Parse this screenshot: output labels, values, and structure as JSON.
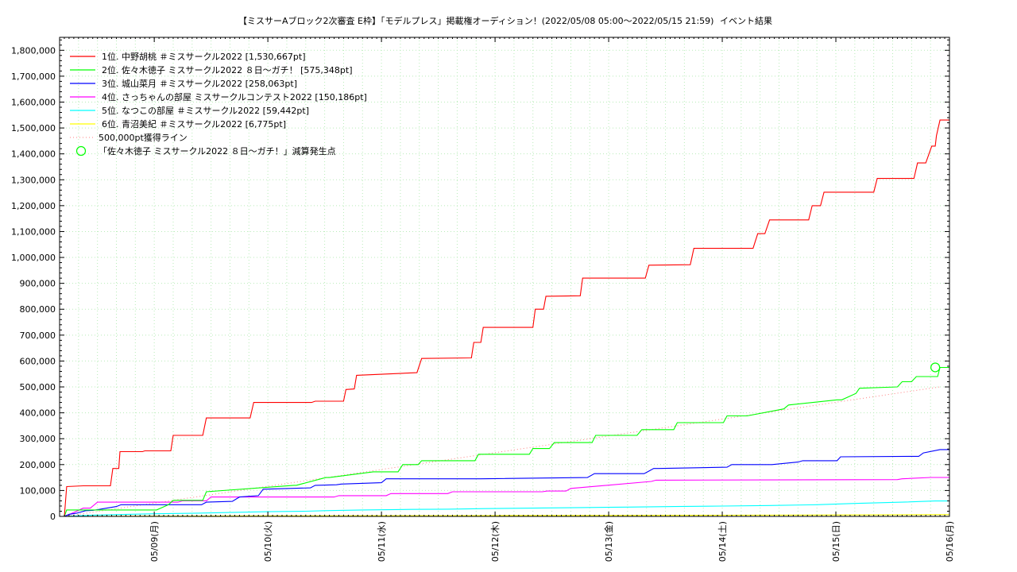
{
  "chart_data": {
    "type": "line",
    "title": "【ミスサーAブロック2次審査 E枠】「モデルプレス」掲載権オーディション！(2022/05/08 05:00～2022/05/15 21:59)",
    "subtitle": "イベント結果",
    "xlabel": "",
    "ylabel": "",
    "x_range": [
      "2022-05-08 04:00",
      "2022-05-16 00:00"
    ],
    "ylim": [
      0,
      1850000
    ],
    "y_ticks": [
      0,
      100000,
      200000,
      300000,
      400000,
      500000,
      600000,
      700000,
      800000,
      900000,
      1000000,
      1100000,
      1200000,
      1300000,
      1400000,
      1500000,
      1600000,
      1700000,
      1800000
    ],
    "y_tick_labels": [
      "0",
      "100,000",
      "200,000",
      "300,000",
      "400,000",
      "500,000",
      "600,000",
      "700,000",
      "800,000",
      "900,000",
      "1,000,000",
      "1,100,000",
      "1,200,000",
      "1,300,000",
      "1,400,000",
      "1,500,000",
      "1,600,000",
      "1,700,000",
      "1,800,000"
    ],
    "x_ticks": [
      "2022-05-09 00:00",
      "2022-05-10 00:00",
      "2022-05-11 00:00",
      "2022-05-12 00:00",
      "2022-05-13 00:00",
      "2022-05-14 00:00",
      "2022-05-15 00:00",
      "2022-05-16 00:00"
    ],
    "x_tick_labels": [
      "05/09(月)",
      "05/10(火)",
      "05/11(水)",
      "05/12(木)",
      "05/13(金)",
      "05/14(土)",
      "05/15(日)",
      "05/16(月)"
    ],
    "grid": true,
    "legend_position": "top-left",
    "series": [
      {
        "name": "1位. 中野胡桃 ＃ミスサークル2022 [1,530,667pt]",
        "color": "#ff0000",
        "x": [
          "2022-05-08 05:00",
          "2022-05-08 05:30",
          "2022-05-08 09:00",
          "2022-05-08 14:45",
          "2022-05-08 15:15",
          "2022-05-08 16:30",
          "2022-05-08 16:45",
          "2022-05-08 21:30",
          "2022-05-08 22:00",
          "2022-05-09 03:30",
          "2022-05-09 04:00",
          "2022-05-09 10:15",
          "2022-05-09 11:00",
          "2022-05-09 20:15",
          "2022-05-09 21:00",
          "2022-05-10 09:15",
          "2022-05-10 10:00",
          "2022-05-10 16:00",
          "2022-05-10 16:30",
          "2022-05-10 18:15",
          "2022-05-10 18:45",
          "2022-05-11 07:30",
          "2022-05-11 08:30",
          "2022-05-11 19:00",
          "2022-05-11 19:30",
          "2022-05-11 21:00",
          "2022-05-11 21:30",
          "2022-05-12 08:00",
          "2022-05-12 08:30",
          "2022-05-12 10:15",
          "2022-05-12 10:45",
          "2022-05-12 18:00",
          "2022-05-12 18:30",
          "2022-05-13 07:45",
          "2022-05-13 08:30",
          "2022-05-13 17:15",
          "2022-05-13 18:00",
          "2022-05-14 06:30",
          "2022-05-14 07:30",
          "2022-05-14 09:00",
          "2022-05-14 10:00",
          "2022-05-14 18:15",
          "2022-05-14 19:00",
          "2022-05-14 20:45",
          "2022-05-14 21:30",
          "2022-05-15 08:00",
          "2022-05-15 08:45",
          "2022-05-15 16:30",
          "2022-05-15 17:15",
          "2022-05-15 17:45",
          "2022-05-15 19:00",
          "2022-05-15 20:15",
          "2022-05-15 21:00",
          "2022-05-15 21:15",
          "2022-05-15 22:00",
          "2022-05-16 00:00"
        ],
        "y": [
          0,
          115000,
          118000,
          118000,
          185000,
          185000,
          250000,
          250000,
          253000,
          253000,
          313000,
          313000,
          380000,
          380000,
          440000,
          440000,
          445000,
          445000,
          490000,
          492000,
          545000,
          555000,
          610000,
          612000,
          672000,
          672000,
          730000,
          730000,
          800000,
          800000,
          850000,
          852000,
          920000,
          920000,
          970000,
          972000,
          1035000,
          1035000,
          1092000,
          1092000,
          1145000,
          1145000,
          1200000,
          1200000,
          1252000,
          1252000,
          1305000,
          1305000,
          1365000,
          1365000,
          1365000,
          1430000,
          1430000,
          1470000,
          1530667,
          1530667
        ]
      },
      {
        "name": "2位. 佐々木徳子 ミスサークル2022 ８日〜ガチ！ [575,348pt]",
        "color": "#00ff00",
        "x": [
          "2022-05-08 05:00",
          "2022-05-08 05:30",
          "2022-05-08 09:00",
          "2022-05-08 10:30",
          "2022-05-08 11:30",
          "2022-05-09 00:30",
          "2022-05-09 03:00",
          "2022-05-09 04:00",
          "2022-05-09 10:15",
          "2022-05-09 11:00",
          "2022-05-10 05:30",
          "2022-05-10 06:00",
          "2022-05-10 12:15",
          "2022-05-10 13:00",
          "2022-05-10 22:15",
          "2022-05-10 23:00",
          "2022-05-11 03:30",
          "2022-05-11 04:30",
          "2022-05-11 07:45",
          "2022-05-11 08:30",
          "2022-05-11 19:45",
          "2022-05-11 20:30",
          "2022-05-12 00:15",
          "2022-05-12 01:00",
          "2022-05-12 07:15",
          "2022-05-12 08:00",
          "2022-05-12 11:30",
          "2022-05-12 12:30",
          "2022-05-12 20:30",
          "2022-05-12 21:15",
          "2022-05-13 06:00",
          "2022-05-13 07:00",
          "2022-05-13 13:45",
          "2022-05-13 14:30",
          "2022-05-14 00:15",
          "2022-05-14 01:00",
          "2022-05-14 04:30",
          "2022-05-14 05:15",
          "2022-05-14 13:00",
          "2022-05-14 14:00",
          "2022-05-15 00:15",
          "2022-05-15 01:15",
          "2022-05-15 04:15",
          "2022-05-15 05:00",
          "2022-05-15 13:00",
          "2022-05-15 14:00",
          "2022-05-15 16:00",
          "2022-05-15 17:00",
          "2022-05-15 21:30",
          "2022-05-15 22:00",
          "2022-05-16 00:00"
        ],
        "y": [
          0,
          25000,
          25000,
          25000,
          25000,
          25000,
          45000,
          62000,
          62000,
          95000,
          120000,
          120000,
          150000,
          150000,
          172000,
          172000,
          172000,
          200000,
          200000,
          215000,
          215000,
          240000,
          240000,
          240000,
          240000,
          262000,
          262000,
          285000,
          285000,
          313000,
          313000,
          335000,
          335000,
          362000,
          362000,
          388000,
          388000,
          388000,
          415000,
          430000,
          450000,
          450000,
          475000,
          495000,
          500000,
          520000,
          520000,
          540000,
          540000,
          575348,
          575348
        ]
      },
      {
        "name": "3位. 城山菜月 ＃ミスサークル2022 [258,063pt]",
        "color": "#0000ff",
        "x": [
          "2022-05-08 05:00",
          "2022-05-08 06:00",
          "2022-05-08 07:30",
          "2022-05-08 09:30",
          "2022-05-08 11:00",
          "2022-05-08 16:00",
          "2022-05-08 17:00",
          "2022-05-09 00:00",
          "2022-05-09 10:00",
          "2022-05-09 11:00",
          "2022-05-09 16:30",
          "2022-05-09 18:00",
          "2022-05-09 22:00",
          "2022-05-09 23:00",
          "2022-05-10 09:00",
          "2022-05-10 10:00",
          "2022-05-10 14:30",
          "2022-05-10 15:30",
          "2022-05-11 00:00",
          "2022-05-11 01:00",
          "2022-05-11 20:00",
          "2022-05-11 21:00",
          "2022-05-12 19:30",
          "2022-05-12 21:00",
          "2022-05-13 07:30",
          "2022-05-13 08:30",
          "2022-05-13 09:30",
          "2022-05-13 10:30",
          "2022-05-14 01:00",
          "2022-05-14 02:00",
          "2022-05-14 09:30",
          "2022-05-14 10:30",
          "2022-05-14 16:00",
          "2022-05-14 17:00",
          "2022-05-15 00:15",
          "2022-05-15 01:00",
          "2022-05-15 17:30",
          "2022-05-15 18:30",
          "2022-05-15 22:00",
          "2022-05-16 00:00"
        ],
        "y": [
          0,
          8000,
          12000,
          22000,
          23000,
          38000,
          45000,
          45000,
          45000,
          55000,
          58000,
          75000,
          80000,
          105000,
          110000,
          120000,
          122000,
          125000,
          130000,
          145000,
          145000,
          145000,
          150000,
          165000,
          165000,
          175000,
          185000,
          185000,
          190000,
          200000,
          200000,
          200000,
          210000,
          215000,
          215000,
          230000,
          232000,
          245000,
          258063,
          258063
        ]
      },
      {
        "name": "4位. さっちゃんの部屋 ミスサークルコンテスト2022 [150,186pt]",
        "color": "#ff00ff",
        "x": [
          "2022-05-08 05:00",
          "2022-05-08 07:00",
          "2022-05-08 09:00",
          "2022-05-08 10:30",
          "2022-05-08 12:00",
          "2022-05-09 05:00",
          "2022-05-09 06:00",
          "2022-05-09 11:00",
          "2022-05-09 12:00",
          "2022-05-10 14:00",
          "2022-05-10 15:00",
          "2022-05-11 01:00",
          "2022-05-11 02:00",
          "2022-05-11 14:00",
          "2022-05-11 15:00",
          "2022-05-12 10:00",
          "2022-05-12 11:00",
          "2022-05-12 15:00",
          "2022-05-12 16:00",
          "2022-05-13 09:00",
          "2022-05-13 10:00",
          "2022-05-15 13:00",
          "2022-05-15 14:00",
          "2022-05-15 20:00",
          "2022-05-16 00:00"
        ],
        "y": [
          0,
          15000,
          32000,
          32000,
          55000,
          55000,
          60000,
          60000,
          75000,
          75000,
          80000,
          80000,
          88000,
          88000,
          95000,
          95000,
          98000,
          98000,
          108000,
          135000,
          140000,
          142000,
          145000,
          150186,
          150186
        ]
      },
      {
        "name": "5位. なつこの部屋 ＃ミスサークル2022 [59,442pt]",
        "color": "#00ffff",
        "x": [
          "2022-05-08 05:00",
          "2022-05-08 11:00",
          "2022-05-09 00:00",
          "2022-05-09 08:00",
          "2022-05-09 16:00",
          "2022-05-10 00:00",
          "2022-05-10 08:00",
          "2022-05-10 12:00",
          "2022-05-10 20:00",
          "2022-05-11 06:00",
          "2022-05-11 14:00",
          "2022-05-11 22:00",
          "2022-05-12 08:00",
          "2022-05-12 18:00",
          "2022-05-13 04:00",
          "2022-05-13 14:00",
          "2022-05-14 00:00",
          "2022-05-14 10:00",
          "2022-05-14 20:00",
          "2022-05-15 04:00",
          "2022-05-15 14:00",
          "2022-05-15 21:00",
          "2022-05-16 00:00"
        ],
        "y": [
          0,
          5000,
          10000,
          12000,
          15000,
          18000,
          20000,
          22000,
          25000,
          27000,
          28000,
          30000,
          32000,
          34000,
          36000,
          38000,
          40000,
          42000,
          45000,
          50000,
          55000,
          59442,
          59442
        ]
      },
      {
        "name": "6位. 青沼美紀 ＃ミスサークル2022 [6,775pt]",
        "color": "#ffff00",
        "x": [
          "2022-05-08 05:00",
          "2022-05-09 00:00",
          "2022-05-10 00:00",
          "2022-05-11 00:00",
          "2022-05-12 00:00",
          "2022-05-13 00:00",
          "2022-05-14 00:00",
          "2022-05-15 00:00",
          "2022-05-15 21:00",
          "2022-05-16 00:00"
        ],
        "y": [
          0,
          1000,
          2000,
          2500,
          3000,
          3800,
          4500,
          5500,
          6775,
          6775
        ]
      },
      {
        "name": "500,000pt獲得ライン",
        "color": "#ff8080",
        "dashed": true,
        "x": [
          "2022-05-08 05:00",
          "2022-05-15 22:00"
        ],
        "y": [
          0,
          500000
        ]
      }
    ],
    "annotations": [
      {
        "name": "「佐々木徳子 ミスサークル2022 ８日〜ガチ！」減算発生点",
        "color": "#00ff00",
        "marker": "circle",
        "x": "2022-05-15 21:00",
        "y": 575348
      }
    ]
  }
}
